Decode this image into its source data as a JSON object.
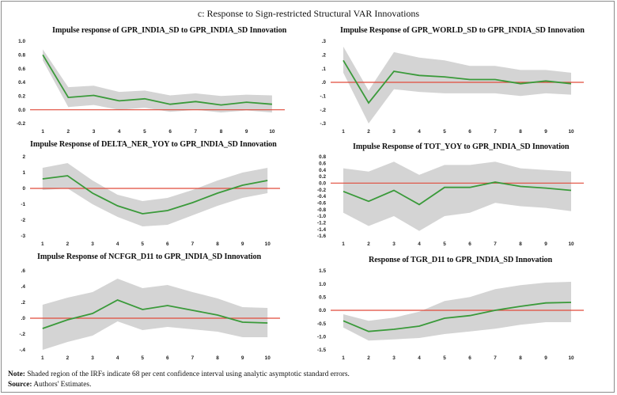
{
  "figure": {
    "title": "c: Response to Sign-restricted Structural VAR Innovations",
    "note_label": "Note:",
    "note_text": "Shaded region of the IRFs indicate 68 per cent confidence interval using analytic asymptotic standard errors.",
    "source_label": "Source:",
    "source_text": "Authors' Estimates."
  },
  "colors": {
    "line": "#3a9a3a",
    "band": "#d4d4d4",
    "zero": "#e04a3a"
  },
  "chart_data": [
    {
      "type": "line",
      "title": "Impulse response of GPR_INDIA_SD to GPR_INDIA_SD Innovation",
      "x": [
        1,
        2,
        3,
        4,
        5,
        6,
        7,
        8,
        9,
        10
      ],
      "series": [
        {
          "name": "response",
          "values": [
            0.8,
            0.18,
            0.21,
            0.13,
            0.16,
            0.08,
            0.12,
            0.07,
            0.11,
            0.08
          ]
        },
        {
          "name": "upper",
          "values": [
            0.88,
            0.33,
            0.35,
            0.26,
            0.28,
            0.21,
            0.24,
            0.2,
            0.22,
            0.21
          ]
        },
        {
          "name": "lower",
          "values": [
            0.72,
            0.04,
            0.07,
            0.0,
            0.03,
            -0.03,
            0.0,
            -0.04,
            -0.01,
            -0.04
          ]
        }
      ],
      "ylim": [
        -0.2,
        1.0
      ],
      "yticks": [
        -0.2,
        0.0,
        0.2,
        0.4,
        0.6,
        0.8,
        1.0
      ],
      "ytick_labels": [
        "-0.2",
        "0.0",
        "0.2",
        "0.4",
        "0.6",
        "0.8",
        "1.0"
      ],
      "xticks": [
        "1",
        "2",
        "3",
        "4",
        "5",
        "6",
        "7",
        "8",
        "9",
        "10"
      ]
    },
    {
      "type": "line",
      "title": "Impulse Response of GPR_WORLD_SD to GPR_INDIA_SD Innovation",
      "x": [
        1,
        2,
        3,
        4,
        5,
        6,
        7,
        8,
        9,
        10
      ],
      "series": [
        {
          "name": "response",
          "values": [
            0.16,
            -0.15,
            0.08,
            0.05,
            0.04,
            0.02,
            0.02,
            -0.01,
            0.01,
            -0.01
          ]
        },
        {
          "name": "upper",
          "values": [
            0.26,
            -0.06,
            0.22,
            0.18,
            0.16,
            0.12,
            0.12,
            0.09,
            0.09,
            0.07
          ]
        },
        {
          "name": "lower",
          "values": [
            0.07,
            -0.3,
            -0.05,
            -0.07,
            -0.08,
            -0.08,
            -0.08,
            -0.1,
            -0.08,
            -0.09
          ]
        }
      ],
      "ylim": [
        -0.3,
        0.3
      ],
      "yticks": [
        -0.3,
        -0.2,
        -0.1,
        0.0,
        0.1,
        0.2,
        0.3
      ],
      "ytick_labels": [
        "-.3",
        "-.2",
        "-.1",
        ".0",
        ".1",
        ".2",
        ".3"
      ],
      "xticks": [
        "1",
        "2",
        "3",
        "4",
        "5",
        "6",
        "7",
        "8",
        "9",
        "10"
      ]
    },
    {
      "type": "line",
      "title": "Impulse Response of DELTA_NER_YOY to GPR_INDIA_SD Innovation",
      "x": [
        1,
        2,
        3,
        4,
        5,
        6,
        7,
        8,
        9,
        10
      ],
      "series": [
        {
          "name": "response",
          "values": [
            0.6,
            0.8,
            -0.3,
            -1.1,
            -1.6,
            -1.4,
            -0.9,
            -0.3,
            0.2,
            0.5
          ]
        },
        {
          "name": "upper",
          "values": [
            1.3,
            1.6,
            0.5,
            -0.4,
            -0.8,
            -0.6,
            -0.1,
            0.5,
            1.0,
            1.3
          ]
        },
        {
          "name": "lower",
          "values": [
            -0.1,
            0.0,
            -1.0,
            -1.8,
            -2.4,
            -2.3,
            -1.7,
            -1.1,
            -0.6,
            -0.3
          ]
        }
      ],
      "ylim": [
        -3,
        2
      ],
      "yticks": [
        -3,
        -2,
        -1,
        0,
        1,
        2
      ],
      "ytick_labels": [
        "-3",
        "-2",
        "-1",
        "0",
        "1",
        "2"
      ],
      "xticks": [
        "1",
        "2",
        "3",
        "4",
        "5",
        "6",
        "7",
        "8",
        "9",
        "10"
      ]
    },
    {
      "type": "line",
      "title": "Impulse Response of TOT_YOY to GPR_INDIA_SD Innovation",
      "x": [
        1,
        2,
        3,
        4,
        5,
        6,
        7,
        8,
        9,
        10
      ],
      "series": [
        {
          "name": "response",
          "values": [
            -0.25,
            -0.55,
            -0.22,
            -0.65,
            -0.13,
            -0.13,
            0.03,
            -0.1,
            -0.15,
            -0.22
          ]
        },
        {
          "name": "upper",
          "values": [
            0.45,
            0.35,
            0.65,
            0.25,
            0.55,
            0.55,
            0.65,
            0.45,
            0.4,
            0.35
          ]
        },
        {
          "name": "lower",
          "values": [
            -0.9,
            -1.3,
            -1.0,
            -1.45,
            -1.0,
            -0.9,
            -0.6,
            -0.7,
            -0.75,
            -0.85
          ]
        }
      ],
      "ylim": [
        -1.6,
        0.8
      ],
      "yticks": [
        -1.6,
        -1.4,
        -1.2,
        -1.0,
        -0.8,
        -0.6,
        -0.4,
        -0.2,
        0.0,
        0.2,
        0.4,
        0.6,
        0.8
      ],
      "ytick_labels": [
        "-1.6",
        "-1.4",
        "-1.2",
        "-1.0",
        "-0.8",
        "-0.6",
        "-0.4",
        "-0.2",
        "0.0",
        "0.2",
        "0.4",
        "0.6",
        "0.8"
      ],
      "xticks": [
        "1",
        "2",
        "3",
        "4",
        "5",
        "6",
        "7",
        "8",
        "9",
        "10"
      ]
    },
    {
      "type": "line",
      "title": "Impulse Response of NCFGR_D11 to GPR_INDIA_SD Innovation",
      "x": [
        1,
        2,
        3,
        4,
        5,
        6,
        7,
        8,
        9,
        10
      ],
      "series": [
        {
          "name": "response",
          "values": [
            -0.13,
            -0.02,
            0.06,
            0.23,
            0.11,
            0.16,
            0.1,
            0.04,
            -0.05,
            -0.06
          ]
        },
        {
          "name": "upper",
          "values": [
            0.17,
            0.26,
            0.33,
            0.5,
            0.38,
            0.42,
            0.33,
            0.25,
            0.14,
            0.13
          ]
        },
        {
          "name": "lower",
          "values": [
            -0.4,
            -0.3,
            -0.22,
            -0.04,
            -0.15,
            -0.11,
            -0.14,
            -0.17,
            -0.24,
            -0.24
          ]
        }
      ],
      "ylim": [
        -0.4,
        0.6
      ],
      "yticks": [
        -0.4,
        -0.2,
        0.0,
        0.2,
        0.4,
        0.6
      ],
      "ytick_labels": [
        "-.4",
        "-.2",
        ".0",
        ".2",
        ".4",
        ".6"
      ],
      "xticks": [
        "1",
        "2",
        "3",
        "4",
        "5",
        "6",
        "7",
        "8",
        "9",
        "10"
      ]
    },
    {
      "type": "line",
      "title": "Response of TGR_D11 to GPR_INDIA_SD Innovation",
      "x": [
        1,
        2,
        3,
        4,
        5,
        6,
        7,
        8,
        9,
        10
      ],
      "series": [
        {
          "name": "response",
          "values": [
            -0.4,
            -0.8,
            -0.72,
            -0.6,
            -0.3,
            -0.2,
            0.0,
            0.15,
            0.28,
            0.3
          ]
        },
        {
          "name": "upper",
          "values": [
            -0.15,
            -0.4,
            -0.28,
            -0.05,
            0.35,
            0.5,
            0.8,
            0.95,
            1.05,
            1.08
          ]
        },
        {
          "name": "lower",
          "values": [
            -0.65,
            -1.15,
            -1.1,
            -1.05,
            -0.9,
            -0.8,
            -0.7,
            -0.55,
            -0.45,
            -0.45
          ]
        }
      ],
      "ylim": [
        -1.5,
        1.5
      ],
      "yticks": [
        -1.5,
        -1.0,
        -0.5,
        0.0,
        0.5,
        1.0,
        1.5
      ],
      "ytick_labels": [
        "-1.5",
        "-1.0",
        "-0.5",
        "0.0",
        "0.5",
        "1.0",
        "1.5"
      ],
      "xticks": [
        "1",
        "2",
        "3",
        "4",
        "5",
        "6",
        "7",
        "8",
        "9",
        "10"
      ]
    }
  ]
}
